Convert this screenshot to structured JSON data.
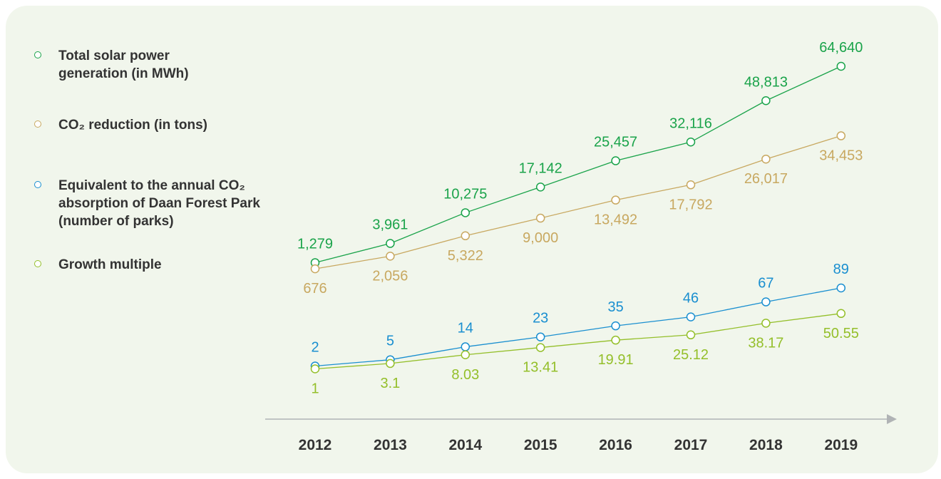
{
  "legend": [
    {
      "label": "Total solar power\ngeneration (in MWh)",
      "color": "#1aa34a"
    },
    {
      "label": "CO₂ reduction (in tons)",
      "color": "#c8a860"
    },
    {
      "label": "Equivalent to the annual CO₂\nabsorption of Daan Forest Park\n(number of parks)",
      "color": "#1a8fd0"
    },
    {
      "label": "Growth multiple",
      "color": "#94bf2a"
    }
  ],
  "chart_data": {
    "type": "line",
    "categories": [
      "2012",
      "2013",
      "2014",
      "2015",
      "2016",
      "2017",
      "2018",
      "2019"
    ],
    "series": [
      {
        "name": "Total solar power generation (in MWh)",
        "color": "#1aa34a",
        "values": [
          1279,
          3961,
          10275,
          17142,
          25457,
          32116,
          48813,
          64640
        ],
        "labels": [
          "1,279",
          "3,961",
          "10,275",
          "17,142",
          "25,457",
          "32,116",
          "48,813",
          "64,640"
        ]
      },
      {
        "name": "CO₂ reduction (in tons)",
        "color": "#c8a860",
        "values": [
          676,
          2056,
          5322,
          9000,
          13492,
          17792,
          26017,
          34453
        ],
        "labels": [
          "676",
          "2,056",
          "5,322",
          "9,000",
          "13,492",
          "17,792",
          "26,017",
          "34,453"
        ]
      },
      {
        "name": "Equivalent to the annual CO₂ absorption of Daan Forest Park (number of parks)",
        "color": "#1a8fd0",
        "values": [
          2,
          5,
          14,
          23,
          35,
          46,
          67,
          89
        ],
        "labels": [
          "2",
          "5",
          "14",
          "23",
          "35",
          "46",
          "67",
          "89"
        ]
      },
      {
        "name": "Growth multiple",
        "color": "#94bf2a",
        "values": [
          1,
          3.1,
          8.03,
          13.41,
          19.91,
          25.12,
          38.17,
          50.55
        ],
        "labels": [
          "1",
          "3.1",
          "8.03",
          "13.41",
          "19.91",
          "25.12",
          "38.17",
          "50.55"
        ]
      }
    ],
    "xaxis_color": "#b0b3b5",
    "grid": false,
    "legend_position": "left"
  }
}
